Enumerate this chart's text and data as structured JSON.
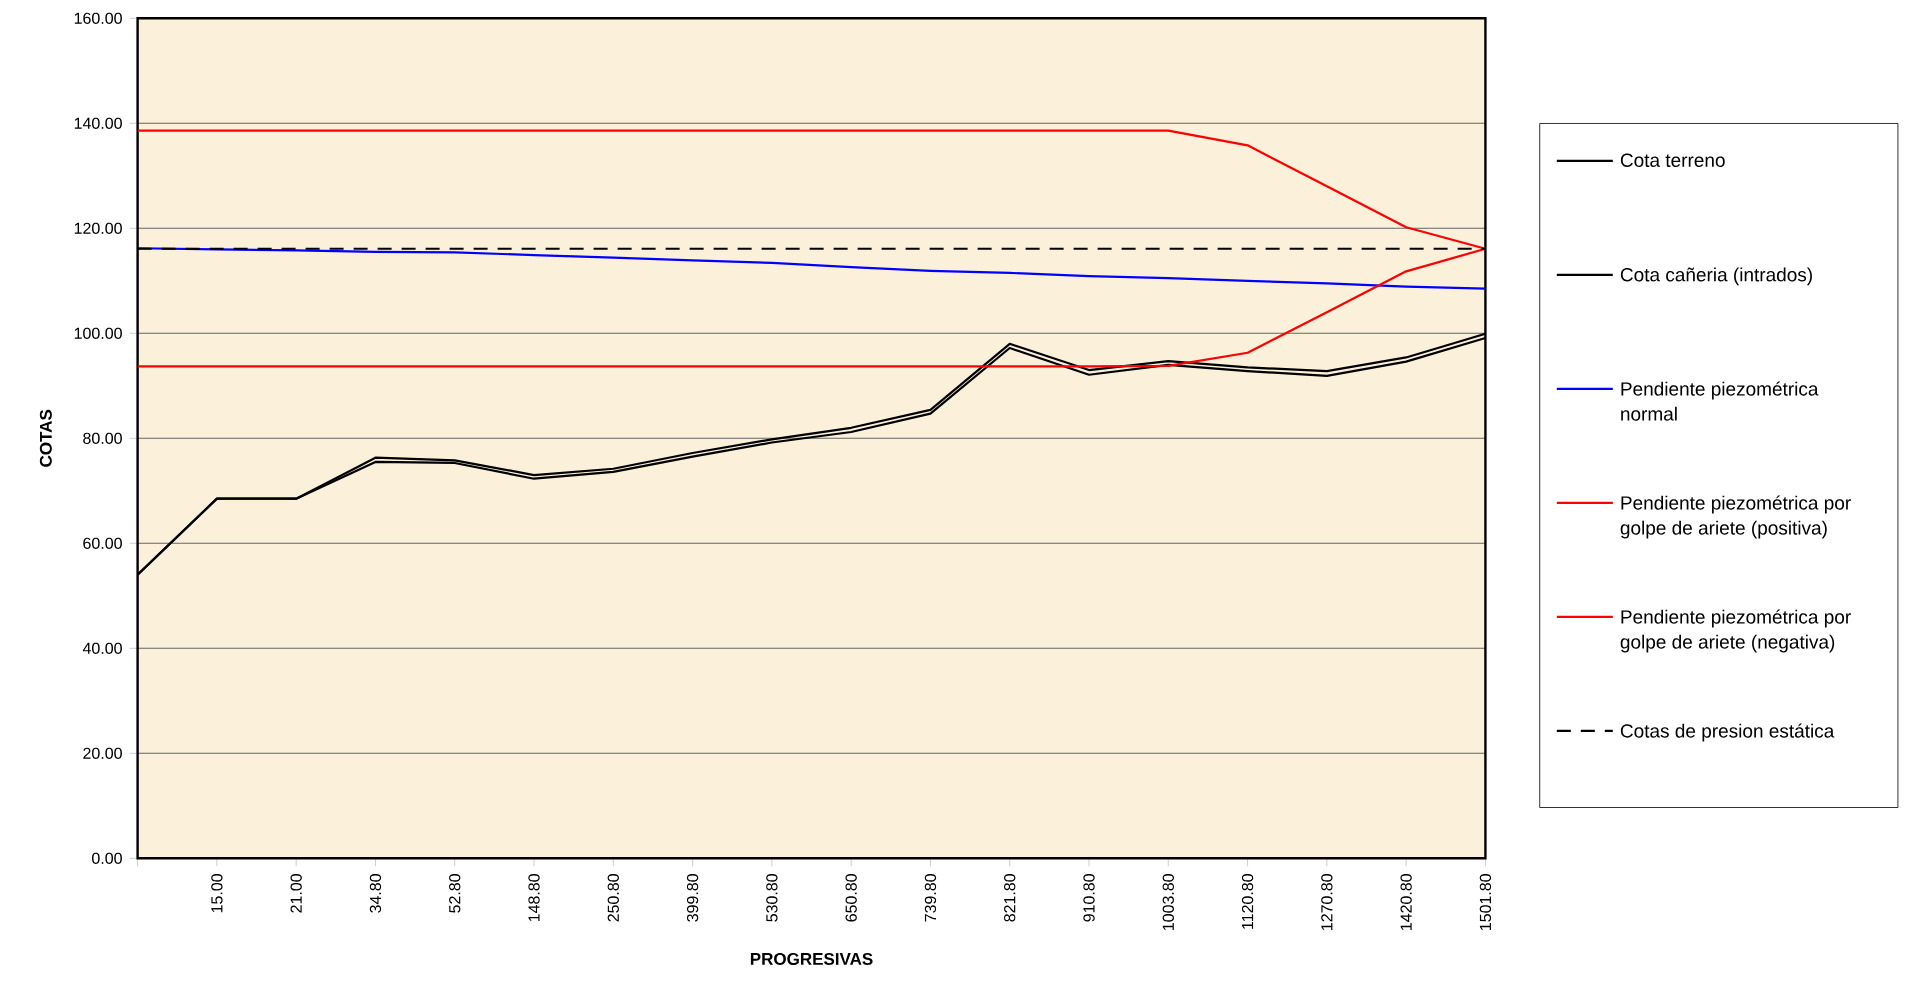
{
  "chart_data": {
    "type": "line",
    "xlabel": "PROGRESIVAS",
    "ylabel": "COTAS",
    "categories": [
      null,
      "15.00",
      "21.00",
      "34.80",
      "52.80",
      "148.80",
      "250.80",
      "399.80",
      "530.80",
      "650.80",
      "739.80",
      "821.80",
      "910.80",
      "1003.80",
      "1120.80",
      "1270.80",
      "1420.80",
      "1501.80"
    ],
    "series": [
      {
        "name": "Cota terreno",
        "color": "#000000",
        "values": [
          54.0,
          68.5,
          68.5,
          76.3,
          75.8,
          73.0,
          74.2,
          77.2,
          79.8,
          82.0,
          85.4,
          98.0,
          93.0,
          94.7,
          93.5,
          92.8,
          95.4,
          99.9
        ]
      },
      {
        "name": "Cota cañeria (intrados)",
        "color": "#000000",
        "values": [
          54.0,
          68.5,
          68.5,
          75.5,
          75.3,
          72.3,
          73.6,
          76.5,
          79.2,
          81.2,
          84.7,
          97.2,
          92.1,
          94.0,
          92.8,
          91.9,
          94.6,
          99.1
        ]
      },
      {
        "name": "Pendiente piezométrica normal",
        "color": "#0000ff",
        "values": [
          116.2,
          116.0,
          115.8,
          115.5,
          115.4,
          114.9,
          114.4,
          113.9,
          113.4,
          112.6,
          111.9,
          111.5,
          110.9,
          110.5,
          110.0,
          109.5,
          108.9,
          108.5
        ]
      },
      {
        "name": "Pendiente piezométrica por golpe de ariete (positiva)",
        "color": "#ff0000",
        "values": [
          138.6,
          138.6,
          138.6,
          138.6,
          138.6,
          138.6,
          138.6,
          138.6,
          138.6,
          138.6,
          138.6,
          138.6,
          138.6,
          138.6,
          135.8,
          128.0,
          120.2,
          116.1
        ]
      },
      {
        "name": "Pendiente piezométrica por golpe de ariete (negativa)",
        "color": "#ff0000",
        "values": [
          93.7,
          93.7,
          93.7,
          93.7,
          93.7,
          93.7,
          93.7,
          93.7,
          93.7,
          93.7,
          93.7,
          93.7,
          93.7,
          93.8,
          96.3,
          104.0,
          111.8,
          116.1
        ]
      },
      {
        "name": "Cotas de presion estática",
        "color": "#000000",
        "line_style": "dashed",
        "values": [
          116.1,
          116.1,
          116.1,
          116.1,
          116.1,
          116.1,
          116.1,
          116.1,
          116.1,
          116.1,
          116.1,
          116.1,
          116.1,
          116.1,
          116.1,
          116.1,
          116.1,
          116.1
        ]
      }
    ],
    "ylim": [
      0,
      160
    ],
    "yticks": [
      {
        "value": 0,
        "label": "0.00"
      },
      {
        "value": 20,
        "label": "20.00"
      },
      {
        "value": 40,
        "label": "40.00"
      },
      {
        "value": 60,
        "label": "60.00"
      },
      {
        "value": 80,
        "label": "80.00"
      },
      {
        "value": 100,
        "label": "100.00"
      },
      {
        "value": 120,
        "label": "120.00"
      },
      {
        "value": 140,
        "label": "140.00"
      },
      {
        "value": 160,
        "label": "160.00"
      }
    ],
    "grid": "y",
    "legend": "right",
    "marker": "none",
    "line_style": "solid"
  }
}
